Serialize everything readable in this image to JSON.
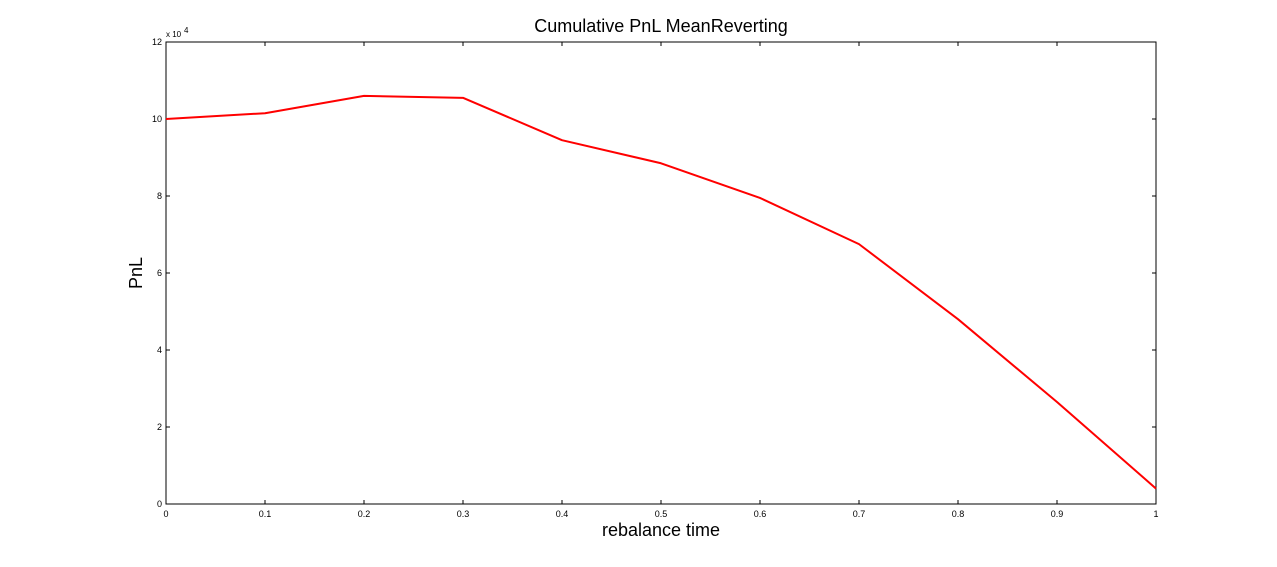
{
  "chart_data": {
    "type": "line",
    "title": "Cumulative PnL MeanReverting",
    "xlabel": "rebalance time",
    "ylabel": "PnL",
    "y_exponent_base": "x 10",
    "y_exponent_power": "4",
    "xlim": [
      0,
      1
    ],
    "ylim": [
      0,
      12
    ],
    "x_ticks": [
      0,
      0.1,
      0.2,
      0.3,
      0.4,
      0.5,
      0.6,
      0.7,
      0.8,
      0.9,
      1
    ],
    "x_tick_labels": [
      "0",
      "0.1",
      "0.2",
      "0.3",
      "0.4",
      "0.5",
      "0.6",
      "0.7",
      "0.8",
      "0.9",
      "1"
    ],
    "y_ticks": [
      0,
      2,
      4,
      6,
      8,
      10,
      12
    ],
    "y_tick_labels": [
      "0",
      "2",
      "4",
      "6",
      "8",
      "10",
      "12"
    ],
    "grid": false,
    "legend": "none",
    "series": [
      {
        "color": "#ff0000",
        "x": [
          0,
          0.1,
          0.2,
          0.3,
          0.4,
          0.5,
          0.6,
          0.7,
          0.8,
          0.9,
          1
        ],
        "y": [
          10.0,
          10.15,
          10.6,
          10.55,
          9.45,
          8.85,
          7.95,
          6.75,
          4.8,
          2.65,
          0.4
        ]
      }
    ]
  }
}
